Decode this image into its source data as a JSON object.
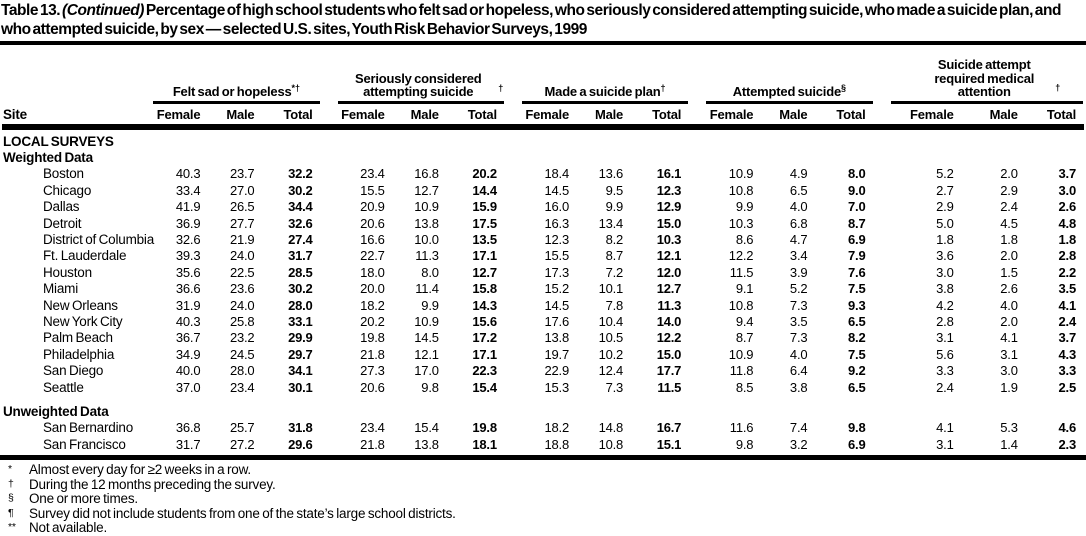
{
  "title": {
    "prefix": "Table 13.",
    "continued": "(Continued)",
    "text": "Percentage of high school students who felt sad or hopeless, who seriously considered attempting suicide, who made a suicide plan, and who attempted suicide, by sex — selected U.S. sites, Youth Risk Behavior Surveys, 1999"
  },
  "header": {
    "site_label": "Site",
    "sub_columns": [
      "Female",
      "Male",
      "Total"
    ],
    "groups": [
      {
        "label": "Felt sad or hopeless",
        "sup": "*†"
      },
      {
        "label": "Seriously considered attempting suicide",
        "sup": "†"
      },
      {
        "label": "Made a suicide plan",
        "sup": "†"
      },
      {
        "label": "Attempted suicide",
        "sup": "§"
      },
      {
        "label": "Suicide attempt required medical attention",
        "sup": "†"
      }
    ]
  },
  "table": {
    "body": [
      {
        "heading": "LOCAL SURVEYS"
      },
      {
        "heading": "Weighted Data"
      },
      {
        "site": "Boston",
        "cells": [
          "40.3",
          "23.7",
          "32.2",
          "23.4",
          "16.8",
          "20.2",
          "18.4",
          "13.6",
          "16.1",
          "10.9",
          "4.9",
          "8.0",
          "5.2",
          "2.0",
          "3.7"
        ]
      },
      {
        "site": "Chicago",
        "cells": [
          "33.4",
          "27.0",
          "30.2",
          "15.5",
          "12.7",
          "14.4",
          "14.5",
          "9.5",
          "12.3",
          "10.8",
          "6.5",
          "9.0",
          "2.7",
          "2.9",
          "3.0"
        ]
      },
      {
        "site": "Dallas",
        "cells": [
          "41.9",
          "26.5",
          "34.4",
          "20.9",
          "10.9",
          "15.9",
          "16.0",
          "9.9",
          "12.9",
          "9.9",
          "4.0",
          "7.0",
          "2.9",
          "2.4",
          "2.6"
        ]
      },
      {
        "site": "Detroit",
        "cells": [
          "36.9",
          "27.7",
          "32.6",
          "20.6",
          "13.8",
          "17.5",
          "16.3",
          "13.4",
          "15.0",
          "10.3",
          "6.8",
          "8.7",
          "5.0",
          "4.5",
          "4.8"
        ]
      },
      {
        "site": "District of Columbia",
        "cells": [
          "32.6",
          "21.9",
          "27.4",
          "16.6",
          "10.0",
          "13.5",
          "12.3",
          "8.2",
          "10.3",
          "8.6",
          "4.7",
          "6.9",
          "1.8",
          "1.8",
          "1.8"
        ]
      },
      {
        "site": "Ft. Lauderdale",
        "cells": [
          "39.3",
          "24.0",
          "31.7",
          "22.7",
          "11.3",
          "17.1",
          "15.5",
          "8.7",
          "12.1",
          "12.2",
          "3.4",
          "7.9",
          "3.6",
          "2.0",
          "2.8"
        ]
      },
      {
        "site": "Houston",
        "cells": [
          "35.6",
          "22.5",
          "28.5",
          "18.0",
          "8.0",
          "12.7",
          "17.3",
          "7.2",
          "12.0",
          "11.5",
          "3.9",
          "7.6",
          "3.0",
          "1.5",
          "2.2"
        ]
      },
      {
        "site": "Miami",
        "cells": [
          "36.6",
          "23.6",
          "30.2",
          "20.0",
          "11.4",
          "15.8",
          "15.2",
          "10.1",
          "12.7",
          "9.1",
          "5.2",
          "7.5",
          "3.8",
          "2.6",
          "3.5"
        ]
      },
      {
        "site": "New Orleans",
        "cells": [
          "31.9",
          "24.0",
          "28.0",
          "18.2",
          "9.9",
          "14.3",
          "14.5",
          "7.8",
          "11.3",
          "10.8",
          "7.3",
          "9.3",
          "4.2",
          "4.0",
          "4.1"
        ]
      },
      {
        "site": "New York City",
        "cells": [
          "40.3",
          "25.8",
          "33.1",
          "20.2",
          "10.9",
          "15.6",
          "17.6",
          "10.4",
          "14.0",
          "9.4",
          "3.5",
          "6.5",
          "2.8",
          "2.0",
          "2.4"
        ]
      },
      {
        "site": "Palm Beach",
        "cells": [
          "36.7",
          "23.2",
          "29.9",
          "19.8",
          "14.5",
          "17.2",
          "13.8",
          "10.5",
          "12.2",
          "8.7",
          "7.3",
          "8.2",
          "3.1",
          "4.1",
          "3.7"
        ]
      },
      {
        "site": "Philadelphia",
        "cells": [
          "34.9",
          "24.5",
          "29.7",
          "21.8",
          "12.1",
          "17.1",
          "19.7",
          "10.2",
          "15.0",
          "10.9",
          "4.0",
          "7.5",
          "5.6",
          "3.1",
          "4.3"
        ]
      },
      {
        "site": "San Diego",
        "cells": [
          "40.0",
          "28.0",
          "34.1",
          "27.3",
          "17.0",
          "22.3",
          "22.9",
          "12.4",
          "17.7",
          "11.8",
          "6.4",
          "9.2",
          "3.3",
          "3.0",
          "3.3"
        ]
      },
      {
        "site": "Seattle",
        "cells": [
          "37.0",
          "23.4",
          "30.1",
          "20.6",
          "9.8",
          "15.4",
          "15.3",
          "7.3",
          "11.5",
          "8.5",
          "3.8",
          "6.5",
          "2.4",
          "1.9",
          "2.5"
        ]
      },
      {
        "heading": "Unweighted Data",
        "gap": true
      },
      {
        "site": "San Bernardino",
        "cells": [
          "36.8",
          "25.7",
          "31.8",
          "23.4",
          "15.4",
          "19.8",
          "18.2",
          "14.8",
          "16.7",
          "11.6",
          "7.4",
          "9.8",
          "4.1",
          "5.3",
          "4.6"
        ]
      },
      {
        "site": "San Francisco",
        "cells": [
          "31.7",
          "27.2",
          "29.6",
          "21.8",
          "13.8",
          "18.1",
          "18.8",
          "10.8",
          "15.1",
          "9.8",
          "3.2",
          "6.9",
          "3.1",
          "1.4",
          "2.3"
        ]
      }
    ]
  },
  "footnotes": [
    {
      "marker": "*",
      "text": "Almost every day for ≥2 weeks in a row."
    },
    {
      "marker": "†",
      "text": "During the 12 months preceding the survey."
    },
    {
      "marker": "§",
      "text": "One or more times."
    },
    {
      "marker": "¶",
      "text": "Survey did not include students from one of the state’s large school districts."
    },
    {
      "marker": "**",
      "text": "Not available."
    }
  ],
  "colors": {
    "text": "#000000",
    "background": "#ffffff"
  }
}
